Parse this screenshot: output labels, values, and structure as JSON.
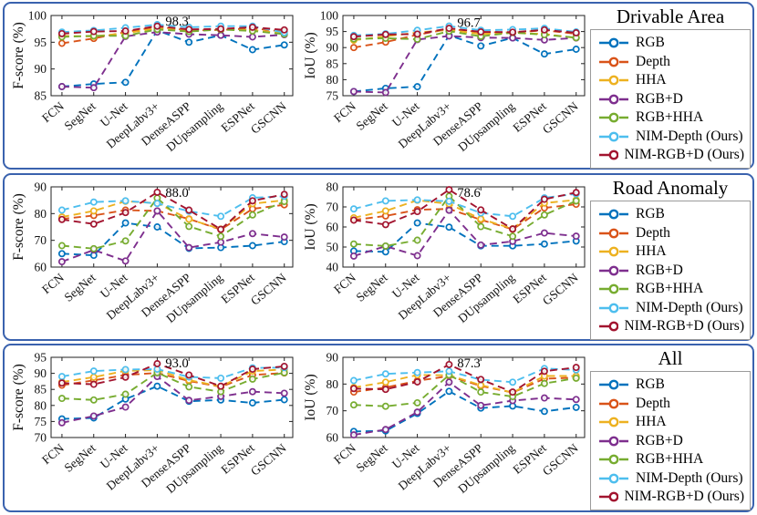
{
  "figure": {
    "series_colors": {
      "RGB": "#0072BD",
      "Depth": "#D95319",
      "HHA": "#EDB120",
      "RGB+D": "#7E2F8E",
      "RGB+HHA": "#77AC30",
      "NIM-Depth (Ours)": "#4DBEEE",
      "NIM-RGB+D (Ours)": "#A2142F"
    },
    "panel_border_color": "#3a62ae",
    "legend_items": [
      "RGB",
      "Depth",
      "HHA",
      "RGB+D",
      "RGB+HHA",
      "NIM-Depth (Ours)",
      "NIM-RGB+D (Ours)"
    ]
  },
  "panels": [
    {
      "title": "Drivable Area"
    },
    {
      "title": "Road Anomaly"
    },
    {
      "title": "All"
    }
  ],
  "categories": [
    "FCN",
    "SegNet",
    "U-Net",
    "DeepLabv3+",
    "DenseASPP",
    "DUpsampling",
    "ESPNet",
    "GSCNN"
  ],
  "chart_data": [
    {
      "type": "line",
      "panel": "Drivable Area",
      "ylabel": "F-score (%)",
      "ylim": [
        85,
        100
      ],
      "yticks": [
        85,
        90,
        95,
        100
      ],
      "annotation": {
        "text": "98.3",
        "category_index": 3,
        "value": 98.3
      },
      "categories": [
        "FCN",
        "SegNet",
        "U-Net",
        "DeepLabv3+",
        "DenseASPP",
        "DUpsampling",
        "ESPNet",
        "GSCNN"
      ],
      "series": [
        {
          "name": "RGB",
          "values": [
            86.7,
            87.2,
            87.5,
            97.2,
            95.0,
            96.3,
            93.6,
            94.5
          ]
        },
        {
          "name": "Depth",
          "values": [
            94.8,
            95.7,
            96.9,
            97.9,
            97.2,
            97.3,
            97.6,
            97.0
          ]
        },
        {
          "name": "HHA",
          "values": [
            96.2,
            96.1,
            96.7,
            97.6,
            97.3,
            97.4,
            97.3,
            96.6
          ]
        },
        {
          "name": "RGB+D",
          "values": [
            86.7,
            86.5,
            96.1,
            96.9,
            96.5,
            96.3,
            96.0,
            96.4
          ]
        },
        {
          "name": "RGB+HHA",
          "values": [
            96.0,
            96.2,
            96.2,
            97.4,
            97.0,
            97.4,
            97.1,
            96.5
          ]
        },
        {
          "name": "NIM-Depth (Ours)",
          "values": [
            96.9,
            97.2,
            97.7,
            98.3,
            97.8,
            98.0,
            98.0,
            96.8
          ]
        },
        {
          "name": "NIM-RGB+D (Ours)",
          "values": [
            96.6,
            97.0,
            97.1,
            98.0,
            97.4,
            97.5,
            97.8,
            97.3
          ]
        }
      ]
    },
    {
      "type": "line",
      "panel": "Drivable Area",
      "ylabel": "IoU (%)",
      "ylim": [
        75,
        100
      ],
      "yticks": [
        75,
        80,
        85,
        90,
        95,
        100
      ],
      "annotation": {
        "text": "96.7",
        "category_index": 3,
        "value": 96.7
      },
      "categories": [
        "FCN",
        "SegNet",
        "U-Net",
        "DeepLabv3+",
        "DenseASPP",
        "DUpsampling",
        "ESPNet",
        "GSCNN"
      ],
      "series": [
        {
          "name": "RGB",
          "values": [
            76.3,
            77.3,
            77.8,
            93.8,
            90.5,
            93.0,
            88.0,
            89.5
          ]
        },
        {
          "name": "Depth",
          "values": [
            90.0,
            91.7,
            94.0,
            95.8,
            94.8,
            94.7,
            95.4,
            94.3
          ]
        },
        {
          "name": "HHA",
          "values": [
            92.3,
            93.5,
            94.7,
            95.5,
            94.2,
            94.6,
            94.2,
            93.0
          ]
        },
        {
          "name": "RGB+D",
          "values": [
            76.3,
            76.0,
            92.5,
            93.6,
            93.1,
            93.0,
            92.4,
            93.0
          ]
        },
        {
          "name": "RGB+HHA",
          "values": [
            92.7,
            92.9,
            92.6,
            95.1,
            93.5,
            94.7,
            94.0,
            93.1
          ]
        },
        {
          "name": "NIM-Depth (Ours)",
          "values": [
            93.8,
            94.3,
            95.4,
            96.7,
            95.4,
            95.6,
            96.0,
            94.9
          ]
        },
        {
          "name": "NIM-RGB+D (Ours)",
          "values": [
            93.4,
            94.1,
            94.2,
            96.0,
            94.9,
            94.8,
            95.5,
            94.6
          ]
        }
      ]
    },
    {
      "type": "line",
      "panel": "Road Anomaly",
      "ylabel": "F-score (%)",
      "ylim": [
        60,
        90
      ],
      "yticks": [
        60,
        70,
        80,
        90
      ],
      "annotation": {
        "text": "88.0",
        "category_index": 3,
        "value": 88.0
      },
      "categories": [
        "FCN",
        "SegNet",
        "U-Net",
        "DeepLabv3+",
        "DenseASPP",
        "DUpsampling",
        "ESPNet",
        "GSCNN"
      ],
      "series": [
        {
          "name": "RGB",
          "values": [
            65.0,
            64.4,
            76.5,
            75.0,
            67.0,
            67.3,
            68.0,
            69.5
          ]
        },
        {
          "name": "Depth",
          "values": [
            78.0,
            79.3,
            81.3,
            81.0,
            78.0,
            74.0,
            81.8,
            83.3
          ]
        },
        {
          "name": "HHA",
          "values": [
            78.7,
            81.0,
            84.6,
            83.9,
            77.9,
            74.2,
            83.7,
            85.0
          ]
        },
        {
          "name": "RGB+D",
          "values": [
            62.0,
            66.4,
            62.3,
            81.0,
            67.3,
            69.3,
            72.5,
            71.2
          ]
        },
        {
          "name": "RGB+HHA",
          "values": [
            68.0,
            66.9,
            69.8,
            85.8,
            75.2,
            71.5,
            79.5,
            84.5
          ]
        },
        {
          "name": "NIM-Depth (Ours)",
          "values": [
            81.3,
            84.3,
            84.8,
            83.8,
            80.9,
            79.0,
            85.9,
            86.5
          ]
        },
        {
          "name": "NIM-RGB+D (Ours)",
          "values": [
            77.8,
            76.1,
            80.4,
            88.0,
            81.3,
            74.1,
            84.8,
            87.2
          ]
        }
      ]
    },
    {
      "type": "line",
      "panel": "Road Anomaly",
      "ylabel": "IoU (%)",
      "ylim": [
        40,
        80
      ],
      "yticks": [
        40,
        50,
        60,
        70,
        80
      ],
      "annotation": {
        "text": "78.6",
        "category_index": 3,
        "value": 78.6
      },
      "categories": [
        "FCN",
        "SegNet",
        "U-Net",
        "DeepLabv3+",
        "DenseASPP",
        "DUpsampling",
        "ESPNet",
        "GSCNN"
      ],
      "series": [
        {
          "name": "RGB",
          "values": [
            48.0,
            47.6,
            62.0,
            59.9,
            50.6,
            50.6,
            51.5,
            53.0
          ]
        },
        {
          "name": "Depth",
          "values": [
            63.5,
            65.5,
            68.6,
            69.0,
            63.6,
            58.8,
            69.5,
            71.3
          ]
        },
        {
          "name": "HHA",
          "values": [
            64.6,
            68.0,
            73.3,
            71.5,
            64.0,
            59.1,
            71.9,
            73.5
          ]
        },
        {
          "name": "RGB+D",
          "values": [
            45.5,
            50.4,
            45.7,
            68.3,
            51.0,
            52.8,
            57.0,
            55.4
          ]
        },
        {
          "name": "RGB+HHA",
          "values": [
            51.5,
            50.5,
            53.4,
            75.3,
            60.2,
            55.3,
            66.0,
            73.0
          ]
        },
        {
          "name": "NIM-Depth (Ours)",
          "values": [
            69.0,
            73.0,
            73.5,
            72.8,
            67.0,
            65.3,
            74.5,
            76.5
          ]
        },
        {
          "name": "NIM-RGB+D (Ours)",
          "values": [
            63.4,
            61.2,
            67.7,
            78.6,
            68.5,
            59.0,
            73.8,
            77.2
          ]
        }
      ]
    },
    {
      "type": "line",
      "panel": "All",
      "ylabel": "F-score (%)",
      "ylim": [
        70,
        95
      ],
      "yticks": [
        70,
        75,
        80,
        85,
        90,
        95
      ],
      "annotation": {
        "text": "93.0",
        "category_index": 3,
        "value": 93.0
      },
      "categories": [
        "FCN",
        "SegNet",
        "U-Net",
        "DeepLabv3+",
        "DenseASPP",
        "DUpsampling",
        "ESPNet",
        "GSCNN"
      ],
      "series": [
        {
          "name": "RGB",
          "values": [
            75.8,
            76.1,
            82.0,
            86.0,
            81.3,
            81.7,
            80.8,
            81.8
          ]
        },
        {
          "name": "Depth",
          "values": [
            86.3,
            87.8,
            89.5,
            90.1,
            87.6,
            85.8,
            89.5,
            90.1
          ]
        },
        {
          "name": "HHA",
          "values": [
            87.3,
            88.8,
            90.8,
            91.0,
            87.9,
            85.9,
            90.7,
            91.2
          ]
        },
        {
          "name": "RGB+D",
          "values": [
            74.6,
            76.7,
            79.5,
            89.0,
            81.6,
            82.8,
            84.3,
            83.8
          ]
        },
        {
          "name": "RGB+HHA",
          "values": [
            82.2,
            81.7,
            83.5,
            90.2,
            85.8,
            84.3,
            88.2,
            90.2
          ]
        },
        {
          "name": "NIM-Depth (Ours)",
          "values": [
            89.0,
            90.7,
            91.2,
            91.3,
            88.9,
            88.5,
            91.7,
            91.8
          ]
        },
        {
          "name": "NIM-RGB+D (Ours)",
          "values": [
            87.0,
            86.6,
            88.8,
            93.0,
            89.5,
            86.0,
            91.3,
            92.2
          ]
        }
      ]
    },
    {
      "type": "line",
      "panel": "All",
      "ylabel": "IoU (%)",
      "ylim": [
        60,
        90
      ],
      "yticks": [
        60,
        70,
        80,
        90
      ],
      "annotation": {
        "text": "87.3",
        "category_index": 3,
        "value": 87.3
      },
      "categories": [
        "FCN",
        "SegNet",
        "U-Net",
        "DeepLabv3+",
        "DenseASPP",
        "DUpsampling",
        "ESPNet",
        "GSCNN"
      ],
      "series": [
        {
          "name": "RGB",
          "values": [
            62.3,
            62.5,
            69.0,
            77.3,
            71.0,
            71.8,
            69.8,
            71.3
          ]
        },
        {
          "name": "Depth",
          "values": [
            77.0,
            78.7,
            81.2,
            83.0,
            79.3,
            76.8,
            82.0,
            82.4
          ]
        },
        {
          "name": "HHA",
          "values": [
            78.7,
            80.7,
            83.4,
            83.3,
            79.6,
            76.8,
            83.0,
            83.0
          ]
        },
        {
          "name": "RGB+D",
          "values": [
            61.0,
            63.0,
            69.5,
            80.7,
            72.0,
            73.8,
            74.8,
            74.2
          ]
        },
        {
          "name": "RGB+HHA",
          "values": [
            72.2,
            71.7,
            73.0,
            83.4,
            77.0,
            75.3,
            80.2,
            82.2
          ]
        },
        {
          "name": "NIM-Depth (Ours)",
          "values": [
            81.3,
            83.8,
            84.3,
            84.8,
            81.6,
            80.7,
            85.8,
            85.3
          ]
        },
        {
          "name": "NIM-RGB+D (Ours)",
          "values": [
            78.3,
            78.0,
            80.8,
            87.3,
            81.7,
            77.0,
            84.8,
            86.2
          ]
        }
      ]
    }
  ]
}
